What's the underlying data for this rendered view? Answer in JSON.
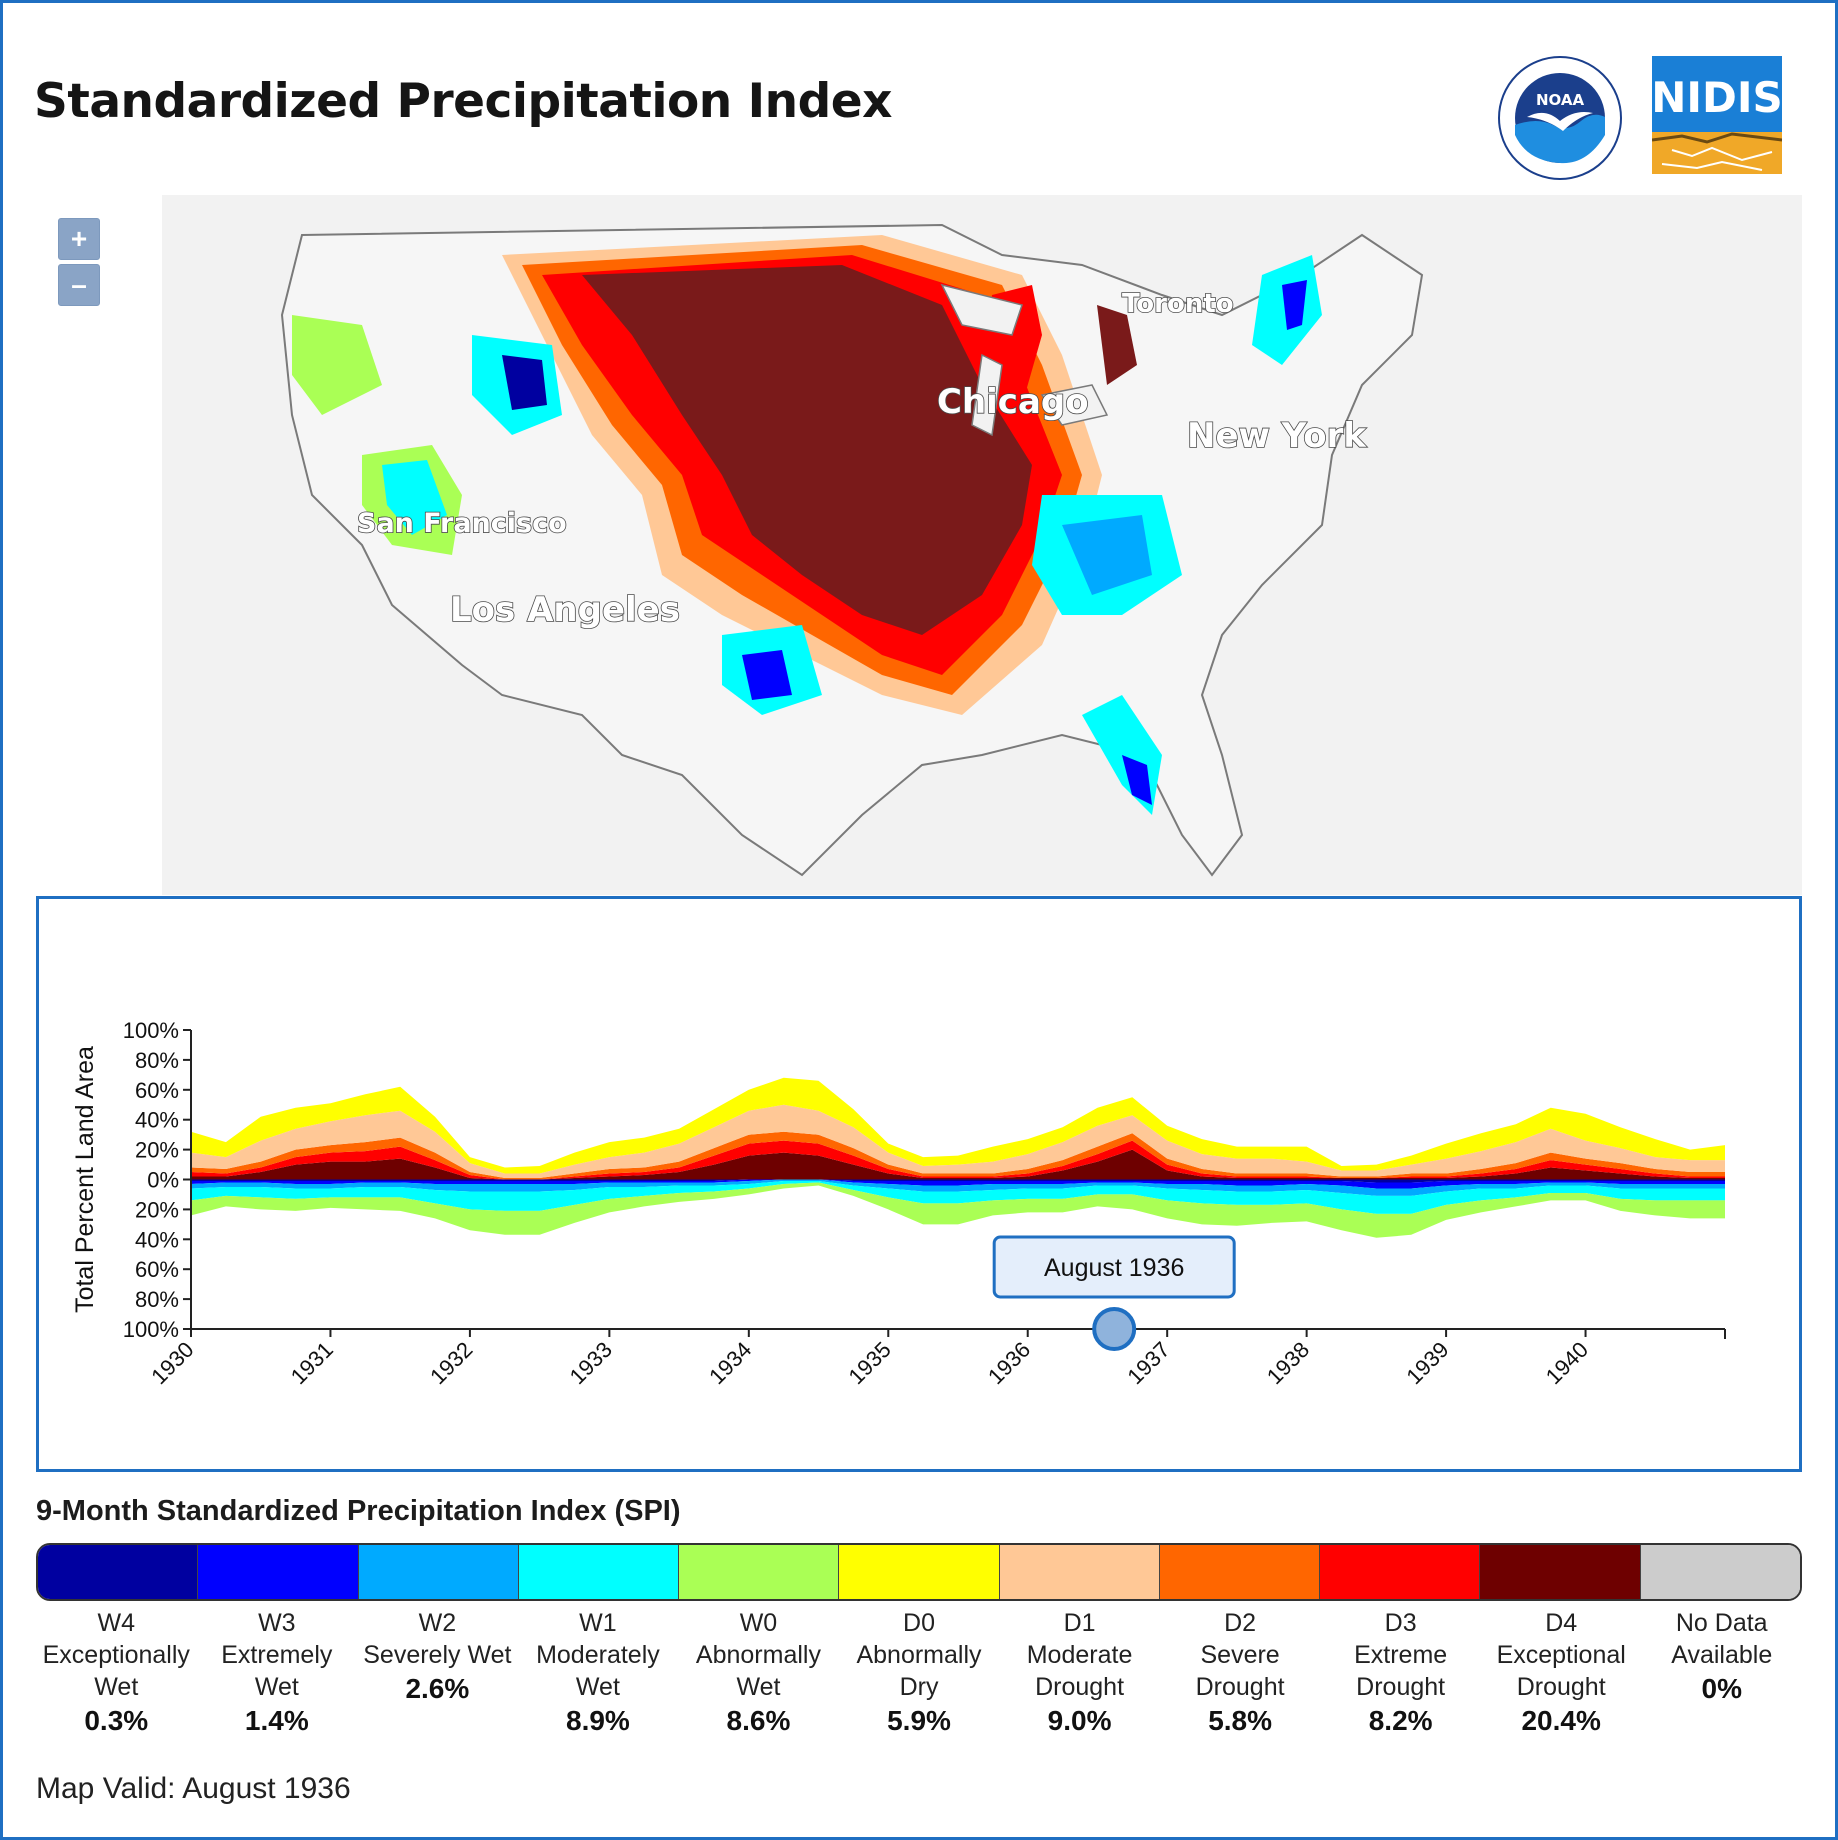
{
  "header": {
    "title": "Standardized Precipitation Index",
    "logos": {
      "noaa": "NOAA",
      "nidis": "NIDIS"
    }
  },
  "map": {
    "zoom_in_label": "+",
    "zoom_out_label": "–",
    "cities": [
      "Toronto",
      "Chicago",
      "New York",
      "San Francisco",
      "Los Angeles"
    ]
  },
  "chart_data": {
    "type": "area",
    "ylabel": "Total Percent Land Area",
    "yticks": [
      "100%",
      "80%",
      "60%",
      "40%",
      "20%",
      "0%",
      "20%",
      "40%",
      "60%",
      "80%",
      "100%"
    ],
    "xticks": [
      "1930",
      "1931",
      "1932",
      "1933",
      "1934",
      "1935",
      "1936",
      "1937",
      "1938",
      "1939",
      "1940"
    ],
    "x_range": [
      1930.0,
      1941.0
    ],
    "y_range": [
      -100,
      100
    ],
    "selected": {
      "label": "August 1936",
      "x": 1936.62
    },
    "x": [
      1930.0,
      1930.25,
      1930.5,
      1930.75,
      1931.0,
      1931.25,
      1931.5,
      1931.75,
      1932.0,
      1932.25,
      1932.5,
      1932.75,
      1933.0,
      1933.25,
      1933.5,
      1933.75,
      1934.0,
      1934.25,
      1934.5,
      1934.75,
      1935.0,
      1935.25,
      1935.5,
      1935.75,
      1936.0,
      1936.25,
      1936.5,
      1936.75,
      1937.0,
      1937.25,
      1937.5,
      1937.75,
      1938.0,
      1938.25,
      1938.5,
      1938.75,
      1939.0,
      1939.25,
      1939.5,
      1939.75,
      1940.0,
      1940.25,
      1940.5,
      1940.75,
      1941.0
    ],
    "series": [
      {
        "name": "D4 Exceptional Drought",
        "color": "#6e0000",
        "sign": 1,
        "values": [
          2,
          2,
          5,
          10,
          12,
          12,
          14,
          8,
          1,
          0,
          0,
          1,
          2,
          3,
          5,
          10,
          16,
          18,
          16,
          10,
          4,
          1,
          1,
          1,
          2,
          6,
          12,
          20,
          6,
          2,
          1,
          1,
          1,
          1,
          1,
          1,
          1,
          2,
          4,
          8,
          6,
          4,
          2,
          1,
          1
        ]
      },
      {
        "name": "D3 Extreme Drought",
        "color": "#ff0000",
        "sign": 1,
        "values": [
          3,
          2,
          3,
          5,
          6,
          7,
          8,
          5,
          2,
          0,
          0,
          1,
          2,
          2,
          3,
          6,
          8,
          8,
          8,
          6,
          3,
          1,
          1,
          1,
          2,
          3,
          5,
          6,
          4,
          2,
          1,
          1,
          1,
          0,
          0,
          1,
          1,
          2,
          3,
          5,
          4,
          3,
          2,
          1,
          1
        ]
      },
      {
        "name": "D2 Severe Drought",
        "color": "#ff6600",
        "sign": 1,
        "values": [
          3,
          3,
          4,
          5,
          5,
          6,
          6,
          5,
          2,
          1,
          1,
          2,
          3,
          3,
          4,
          5,
          6,
          6,
          6,
          5,
          3,
          2,
          2,
          2,
          3,
          4,
          5,
          5,
          4,
          3,
          2,
          2,
          2,
          1,
          1,
          2,
          2,
          3,
          4,
          5,
          4,
          4,
          3,
          3,
          3
        ]
      },
      {
        "name": "D1 Moderate Drought",
        "color": "#ffc896",
        "sign": 1,
        "values": [
          10,
          8,
          14,
          14,
          16,
          18,
          18,
          14,
          6,
          3,
          3,
          6,
          8,
          10,
          12,
          14,
          16,
          18,
          16,
          14,
          8,
          5,
          6,
          8,
          10,
          12,
          14,
          12,
          12,
          10,
          10,
          10,
          8,
          4,
          4,
          6,
          10,
          12,
          14,
          16,
          12,
          10,
          8,
          8,
          8
        ]
      },
      {
        "name": "D0 Abnormally Dry",
        "color": "#ffff00",
        "sign": 1,
        "values": [
          14,
          10,
          16,
          14,
          12,
          14,
          16,
          10,
          4,
          4,
          5,
          8,
          10,
          10,
          10,
          12,
          14,
          18,
          20,
          12,
          6,
          6,
          6,
          10,
          10,
          10,
          12,
          12,
          10,
          10,
          8,
          8,
          10,
          3,
          4,
          6,
          10,
          12,
          12,
          14,
          18,
          14,
          12,
          7,
          10
        ]
      },
      {
        "name": "W4 Exceptionally Wet",
        "color": "#0000a0",
        "sign": -1,
        "values": [
          1,
          1,
          1,
          1,
          1,
          1,
          1,
          1,
          1,
          1,
          1,
          1,
          1,
          1,
          1,
          1,
          0,
          0,
          0,
          1,
          1,
          1,
          1,
          1,
          1,
          1,
          1,
          1,
          1,
          1,
          1,
          1,
          1,
          1,
          2,
          2,
          1,
          1,
          1,
          1,
          1,
          1,
          1,
          1,
          1
        ]
      },
      {
        "name": "W3 Extremely Wet",
        "color": "#0000ff",
        "sign": -1,
        "values": [
          2,
          1,
          1,
          2,
          2,
          1,
          1,
          2,
          2,
          2,
          2,
          2,
          1,
          1,
          1,
          1,
          1,
          0,
          0,
          1,
          2,
          3,
          3,
          2,
          2,
          2,
          1,
          1,
          2,
          2,
          3,
          3,
          2,
          3,
          4,
          4,
          3,
          2,
          2,
          1,
          1,
          2,
          2,
          2,
          2
        ]
      },
      {
        "name": "W2 Severely Wet",
        "color": "#00aaff",
        "sign": -1,
        "values": [
          3,
          3,
          3,
          3,
          3,
          3,
          3,
          4,
          5,
          5,
          5,
          4,
          3,
          3,
          2,
          2,
          2,
          1,
          1,
          2,
          3,
          4,
          4,
          4,
          3,
          3,
          2,
          2,
          3,
          4,
          4,
          4,
          4,
          5,
          5,
          5,
          4,
          3,
          3,
          2,
          2,
          3,
          3,
          3,
          3
        ]
      },
      {
        "name": "W1 Moderately Wet",
        "color": "#00ffff",
        "sign": -1,
        "values": [
          8,
          6,
          7,
          7,
          6,
          7,
          7,
          9,
          12,
          13,
          13,
          10,
          8,
          6,
          5,
          4,
          3,
          2,
          1,
          3,
          6,
          8,
          8,
          7,
          7,
          7,
          6,
          6,
          8,
          9,
          9,
          9,
          9,
          11,
          12,
          12,
          9,
          8,
          6,
          5,
          5,
          7,
          8,
          8,
          8
        ]
      },
      {
        "name": "W0 Abnormally Wet",
        "color": "#aaff55",
        "sign": -1,
        "values": [
          10,
          7,
          8,
          8,
          7,
          8,
          9,
          10,
          14,
          16,
          16,
          12,
          9,
          7,
          6,
          5,
          4,
          3,
          2,
          4,
          8,
          14,
          14,
          10,
          9,
          9,
          8,
          10,
          12,
          14,
          14,
          12,
          12,
          14,
          16,
          14,
          10,
          8,
          6,
          5,
          5,
          8,
          10,
          12,
          12
        ]
      }
    ]
  },
  "legend": {
    "title": "9-Month Standardized Precipitation Index (SPI)",
    "items": [
      {
        "code": "W4",
        "name": "Exceptionally Wet",
        "pct": "0.3%",
        "color": "#0000a0"
      },
      {
        "code": "W3",
        "name": "Extremely Wet",
        "pct": "1.4%",
        "color": "#0000ff"
      },
      {
        "code": "W2",
        "name": "Severely Wet",
        "pct": "2.6%",
        "color": "#00aaff"
      },
      {
        "code": "W1",
        "name": "Moderately Wet",
        "pct": "8.9%",
        "color": "#00ffff"
      },
      {
        "code": "W0",
        "name": "Abnormally Wet",
        "pct": "8.6%",
        "color": "#aaff55"
      },
      {
        "code": "D0",
        "name": "Abnormally Dry",
        "pct": "5.9%",
        "color": "#ffff00"
      },
      {
        "code": "D1",
        "name": "Moderate Drought",
        "pct": "9.0%",
        "color": "#ffc896"
      },
      {
        "code": "D2",
        "name": "Severe Drought",
        "pct": "5.8%",
        "color": "#ff6600"
      },
      {
        "code": "D3",
        "name": "Extreme Drought",
        "pct": "8.2%",
        "color": "#ff0000"
      },
      {
        "code": "D4",
        "name": "Exceptional Drought",
        "pct": "20.4%",
        "color": "#6e0000"
      },
      {
        "code": "No Data",
        "name": "Available",
        "pct": "0%",
        "color": "#cccccc"
      }
    ]
  },
  "footer": {
    "valid_text": "Map Valid: August 1936"
  }
}
